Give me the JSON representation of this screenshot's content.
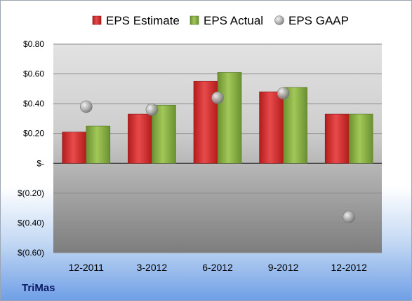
{
  "company": "TriMas",
  "chart_data": {
    "type": "bar",
    "categories": [
      "12-2011",
      "3-2012",
      "6-2012",
      "9-2012",
      "12-2012"
    ],
    "series": [
      {
        "name": "EPS Estimate",
        "type": "bar",
        "values": [
          0.21,
          0.33,
          0.55,
          0.48,
          0.33
        ]
      },
      {
        "name": "EPS Actual",
        "type": "bar",
        "values": [
          0.25,
          0.39,
          0.61,
          0.51,
          0.33
        ]
      },
      {
        "name": "EPS GAAP",
        "type": "scatter",
        "values": [
          0.38,
          0.36,
          0.44,
          0.47,
          -0.36
        ]
      }
    ],
    "ylim": [
      -0.6,
      0.8
    ],
    "yticks": [
      0.8,
      0.6,
      0.4,
      0.2,
      0,
      -0.2,
      -0.4,
      -0.6
    ],
    "ytick_labels": [
      "$0.80",
      "$0.60",
      "$0.40",
      "$0.20",
      "$-",
      "$(0.20)",
      "$(0.40)",
      "$(0.60)"
    ],
    "grid": true,
    "legend_position": "top",
    "colors": {
      "estimate": "#cc2a2a",
      "actual": "#84ab3e",
      "gaap": "#a8a8a8"
    }
  }
}
